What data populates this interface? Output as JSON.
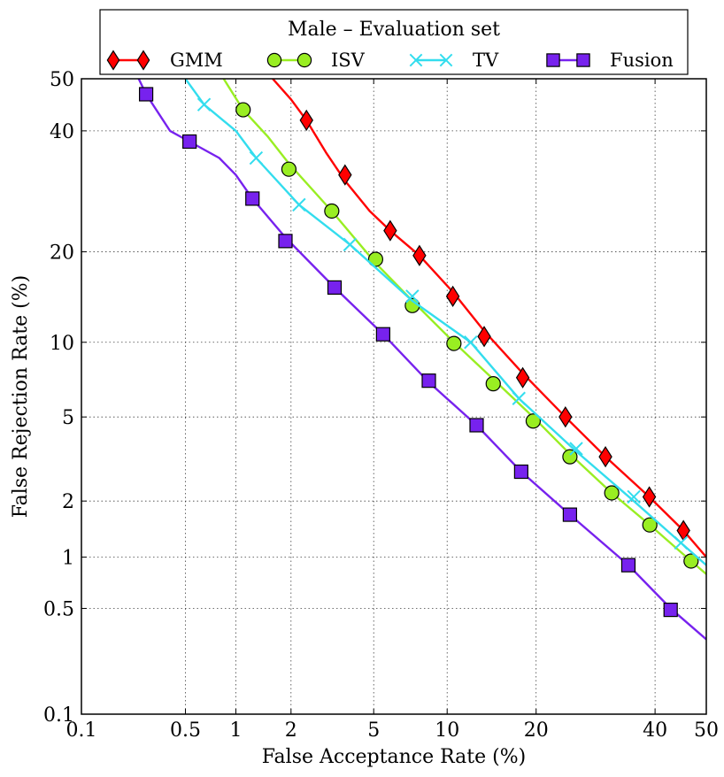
{
  "chart_data": {
    "type": "line",
    "title": "Male – Evaluation set",
    "xlabel": "False Acceptance Rate (%)",
    "ylabel": "False Rejection Rate (%)",
    "scale": "normal-deviate (DET)",
    "xlim": [
      0.1,
      50
    ],
    "ylim": [
      0.1,
      50
    ],
    "grid": true,
    "legend_position": "top",
    "x_ticks": [
      0.1,
      0.5,
      1,
      2,
      5,
      10,
      20,
      40,
      50
    ],
    "x_tick_labels": [
      "0.1",
      "0.5",
      "1",
      "2",
      "5",
      "10",
      "20",
      "40",
      "50"
    ],
    "y_ticks": [
      0.1,
      0.5,
      1,
      2,
      5,
      10,
      20,
      40,
      50
    ],
    "y_tick_labels": [
      "0.1",
      "0.5",
      "1",
      "2",
      "5",
      "10",
      "20",
      "40",
      "50"
    ],
    "series": [
      {
        "name": "GMM",
        "color": "#ff0000",
        "marker": "diamond",
        "line": [
          [
            1.6,
            50
          ],
          [
            2.0,
            46
          ],
          [
            2.4,
            42
          ],
          [
            3.0,
            36
          ],
          [
            3.7,
            31
          ],
          [
            4.8,
            26
          ],
          [
            5.9,
            23
          ],
          [
            7.8,
            19.5
          ],
          [
            10.5,
            15
          ],
          [
            13.6,
            11
          ],
          [
            18.2,
            7.6
          ],
          [
            24.3,
            5
          ],
          [
            30.9,
            3.3
          ],
          [
            38.9,
            2.1
          ],
          [
            45.5,
            1.4
          ],
          [
            50,
            1.0
          ]
        ],
        "markers": [
          [
            2.4,
            42
          ],
          [
            3.7,
            32
          ],
          [
            5.9,
            23
          ],
          [
            7.8,
            19.5
          ],
          [
            10.5,
            14.5
          ],
          [
            13.6,
            10.5
          ],
          [
            18.2,
            7.3
          ],
          [
            24.3,
            5.0
          ],
          [
            30.9,
            3.3
          ],
          [
            38.9,
            2.1
          ],
          [
            45.5,
            1.4
          ]
        ]
      },
      {
        "name": "ISV",
        "color": "#99ee22",
        "marker": "circle",
        "line": [
          [
            0.85,
            50
          ],
          [
            1.1,
            44
          ],
          [
            1.5,
            39
          ],
          [
            1.95,
            34
          ],
          [
            3.2,
            26
          ],
          [
            5.1,
            18.5
          ],
          [
            7.3,
            14
          ],
          [
            10.6,
            10
          ],
          [
            14.6,
            7.2
          ],
          [
            19.6,
            5
          ],
          [
            25,
            3.4
          ],
          [
            32,
            2.2
          ],
          [
            39,
            1.5
          ],
          [
            47,
            0.95
          ],
          [
            50,
            0.8
          ]
        ],
        "markers": [
          [
            1.1,
            44
          ],
          [
            1.95,
            33
          ],
          [
            3.2,
            26
          ],
          [
            5.1,
            19
          ],
          [
            7.3,
            13.5
          ],
          [
            10.6,
            9.9
          ],
          [
            14.6,
            6.9
          ],
          [
            19.6,
            4.8
          ],
          [
            25,
            3.3
          ],
          [
            32,
            2.2
          ],
          [
            39,
            1.5
          ],
          [
            47,
            0.95
          ]
        ]
      },
      {
        "name": "TV",
        "color": "#33ddee",
        "marker": "x",
        "line": [
          [
            0.5,
            50
          ],
          [
            0.65,
            45
          ],
          [
            1.0,
            40
          ],
          [
            1.3,
            35
          ],
          [
            2.2,
            27
          ],
          [
            3.9,
            21
          ],
          [
            7.3,
            14
          ],
          [
            12.2,
            10
          ],
          [
            17.7,
            6
          ],
          [
            26,
            3.5
          ],
          [
            36,
            2.0
          ],
          [
            45,
            1.2
          ],
          [
            50,
            0.9
          ]
        ],
        "markers": [
          [
            0.65,
            45
          ],
          [
            1.3,
            35
          ],
          [
            2.2,
            27
          ],
          [
            3.9,
            21
          ],
          [
            7.3,
            14.5
          ],
          [
            12.2,
            10
          ],
          [
            17.7,
            6
          ],
          [
            26,
            3.6
          ],
          [
            36,
            2.1
          ],
          [
            45,
            1.2
          ]
        ]
      },
      {
        "name": "Fusion",
        "color": "#7722ee",
        "marker": "square",
        "line": [
          [
            0.25,
            50
          ],
          [
            0.28,
            47
          ],
          [
            0.4,
            40
          ],
          [
            0.53,
            38
          ],
          [
            0.8,
            35
          ],
          [
            1.0,
            32
          ],
          [
            1.24,
            28
          ],
          [
            1.87,
            22
          ],
          [
            3.3,
            15.5
          ],
          [
            5.5,
            10.7
          ],
          [
            8.5,
            7
          ],
          [
            12.8,
            4.6
          ],
          [
            18,
            2.8
          ],
          [
            25,
            1.7
          ],
          [
            35,
            0.9
          ],
          [
            43,
            0.5
          ],
          [
            50,
            0.32
          ]
        ],
        "markers": [
          [
            0.28,
            47
          ],
          [
            0.53,
            38
          ],
          [
            1.24,
            28
          ],
          [
            1.87,
            21.5
          ],
          [
            3.3,
            15.5
          ],
          [
            5.5,
            10.7
          ],
          [
            8.5,
            7.1
          ],
          [
            12.8,
            4.6
          ],
          [
            18,
            2.8
          ],
          [
            25,
            1.7
          ],
          [
            35,
            0.9
          ],
          [
            43,
            0.49
          ]
        ]
      }
    ]
  }
}
